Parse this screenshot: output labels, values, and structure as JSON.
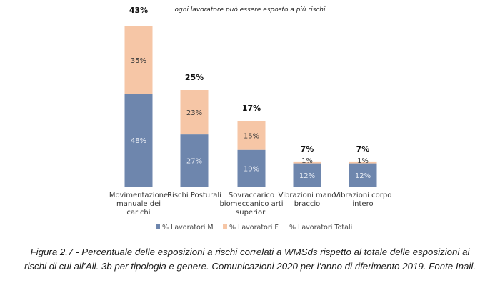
{
  "chart_data": {
    "type": "bar",
    "stacked": true,
    "title": "",
    "subtitle": "ogni lavoratore può essere esposto a più rischi",
    "categories": [
      [
        "Movimentazione",
        "manuale dei",
        "carichi"
      ],
      [
        "Rischi Posturali"
      ],
      [
        "Sovraccarico",
        "biomeccanico arti",
        "superiori"
      ],
      [
        "Vibrazioni mano",
        "braccio"
      ],
      [
        "Vibrazioni corpo",
        "intero"
      ]
    ],
    "series": [
      {
        "name": "% Lavoratori M",
        "values": [
          48,
          27,
          19,
          12,
          12
        ],
        "color": "#6e86ad"
      },
      {
        "name": "% Lavoratori F",
        "values": [
          35,
          23,
          15,
          1,
          1
        ],
        "color": "#f6c6a6"
      },
      {
        "name": "% Lavoratori Totali",
        "values": [
          43,
          25,
          17,
          7,
          7
        ],
        "color": null
      }
    ],
    "xlabel": "",
    "ylabel": "",
    "grid": false,
    "legend": "bottom-center"
  },
  "caption": {
    "line1": "Figura 2.7 -   Percentuale delle esposizioni a rischi correlati a WMSds rispetto al totale delle esposizioni ai",
    "line2": "rischi di cui all’All. 3b per tipologia e genere. Comunicazioni 2020 per l’anno di riferimento 2019. Fonte Inail."
  }
}
